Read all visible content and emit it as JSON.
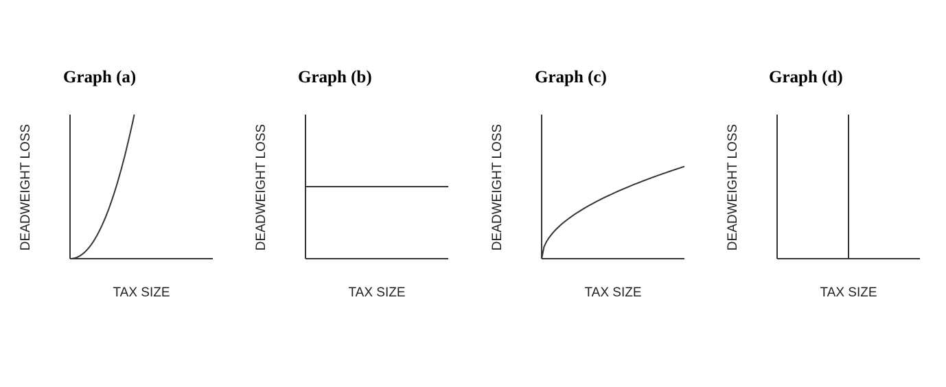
{
  "chart_data": [
    {
      "type": "line",
      "title": "Graph (a)",
      "xlabel": "TAX SIZE",
      "ylabel": "DEADWEIGHT LOSS",
      "shape": "convex-increasing",
      "xlim": [
        0,
        1
      ],
      "ylim": [
        0,
        1
      ],
      "series": [
        {
          "x": [
            0,
            0.1,
            0.2,
            0.3,
            0.4,
            0.45
          ],
          "y": [
            0,
            0.05,
            0.2,
            0.44,
            0.79,
            1.0
          ]
        }
      ]
    },
    {
      "type": "line",
      "title": "Graph (b)",
      "xlabel": "TAX SIZE",
      "ylabel": "DEADWEIGHT LOSS",
      "shape": "horizontal-constant",
      "xlim": [
        0,
        1
      ],
      "ylim": [
        0,
        1
      ],
      "series": [
        {
          "x": [
            0,
            1
          ],
          "y": [
            0.5,
            0.5
          ]
        }
      ]
    },
    {
      "type": "line",
      "title": "Graph (c)",
      "xlabel": "TAX SIZE",
      "ylabel": "DEADWEIGHT LOSS",
      "shape": "concave-increasing",
      "xlim": [
        0,
        1
      ],
      "ylim": [
        0,
        1
      ],
      "series": [
        {
          "x": [
            0,
            0.05,
            0.2,
            0.4,
            0.6,
            0.8,
            1.0
          ],
          "y": [
            0,
            0.14,
            0.28,
            0.4,
            0.49,
            0.57,
            0.64
          ]
        }
      ]
    },
    {
      "type": "line",
      "title": "Graph (d)",
      "xlabel": "TAX SIZE",
      "ylabel": "DEADWEIGHT LOSS",
      "shape": "vertical",
      "xlim": [
        0,
        1
      ],
      "ylim": [
        0,
        1
      ],
      "series": [
        {
          "x": [
            0.5,
            0.5
          ],
          "y": [
            0,
            1
          ]
        }
      ]
    }
  ]
}
